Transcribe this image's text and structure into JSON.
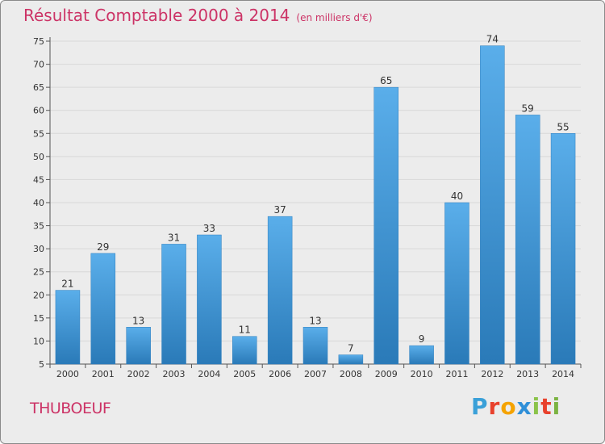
{
  "header": {
    "title": "Résultat Comptable 2000 à 2014",
    "subtitle": "(en milliers d'€)"
  },
  "footer": {
    "commune": "THUBOEUF",
    "logo_letters": [
      "P",
      "r",
      "o",
      "x",
      "i",
      "t",
      "i"
    ],
    "logo_colors": [
      "#3aa0d8",
      "#e8412c",
      "#f5a300",
      "#2f8fd8",
      "#8bc34a",
      "#e8412c",
      "#7cb342"
    ]
  },
  "chart_data": {
    "type": "bar",
    "categories": [
      "2000",
      "2001",
      "2002",
      "2003",
      "2004",
      "2005",
      "2006",
      "2007",
      "2008",
      "2009",
      "2010",
      "2011",
      "2012",
      "2013",
      "2014"
    ],
    "values": [
      21,
      29,
      13,
      31,
      33,
      11,
      37,
      13,
      7,
      65,
      9,
      40,
      74,
      59,
      55
    ],
    "ylim": [
      5,
      75
    ],
    "yticks": [
      5,
      10,
      15,
      20,
      25,
      30,
      35,
      40,
      45,
      50,
      55,
      60,
      65,
      70,
      75
    ],
    "grid": true,
    "bar_color_top": "#5aaeea",
    "bar_color_bottom": "#2a7ab8"
  }
}
